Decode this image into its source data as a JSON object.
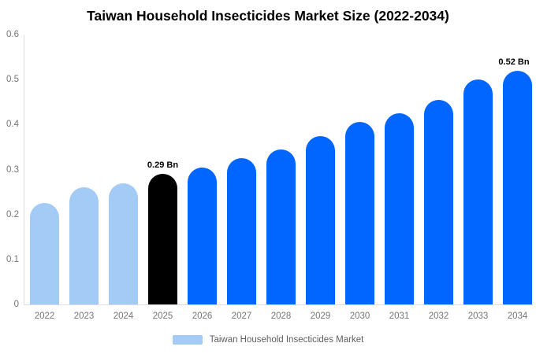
{
  "title": "Taiwan Household Insecticides Market Size (2022-2034)",
  "legend": {
    "label": "Taiwan Household Insecticides Market"
  },
  "colors": {
    "historical": "#A4CBF5",
    "base_year": "#000000",
    "forecast": "#0066FF",
    "axis_line": "#DDDDDD",
    "axis_text": "#757575",
    "annotation_text": "#000000"
  },
  "chart_data": {
    "type": "bar",
    "title": "Taiwan Household Insecticides Market Size (2022-2034)",
    "categories": [
      "2022",
      "2023",
      "2024",
      "2025",
      "2026",
      "2027",
      "2028",
      "2029",
      "2030",
      "2031",
      "2032",
      "2033",
      "2034"
    ],
    "series": [
      {
        "name": "Taiwan Household Insecticides Market",
        "values": [
          0.225,
          0.26,
          0.27,
          0.29,
          0.305,
          0.325,
          0.345,
          0.375,
          0.405,
          0.425,
          0.455,
          0.5,
          0.52
        ]
      }
    ],
    "bar_roles": [
      "historical",
      "historical",
      "historical",
      "base_year",
      "forecast",
      "forecast",
      "forecast",
      "forecast",
      "forecast",
      "forecast",
      "forecast",
      "forecast",
      "forecast"
    ],
    "annotations": [
      {
        "category": "2025",
        "text": "0.29 Bn"
      },
      {
        "category": "2034",
        "text": "0.52 Bn"
      }
    ],
    "unit": "Bn",
    "ylim": [
      0,
      0.6
    ],
    "yticks": [
      "0",
      "0.1",
      "0.2",
      "0.3",
      "0.4",
      "0.5",
      "0.6"
    ],
    "grid": false,
    "legend_position": "bottom"
  }
}
